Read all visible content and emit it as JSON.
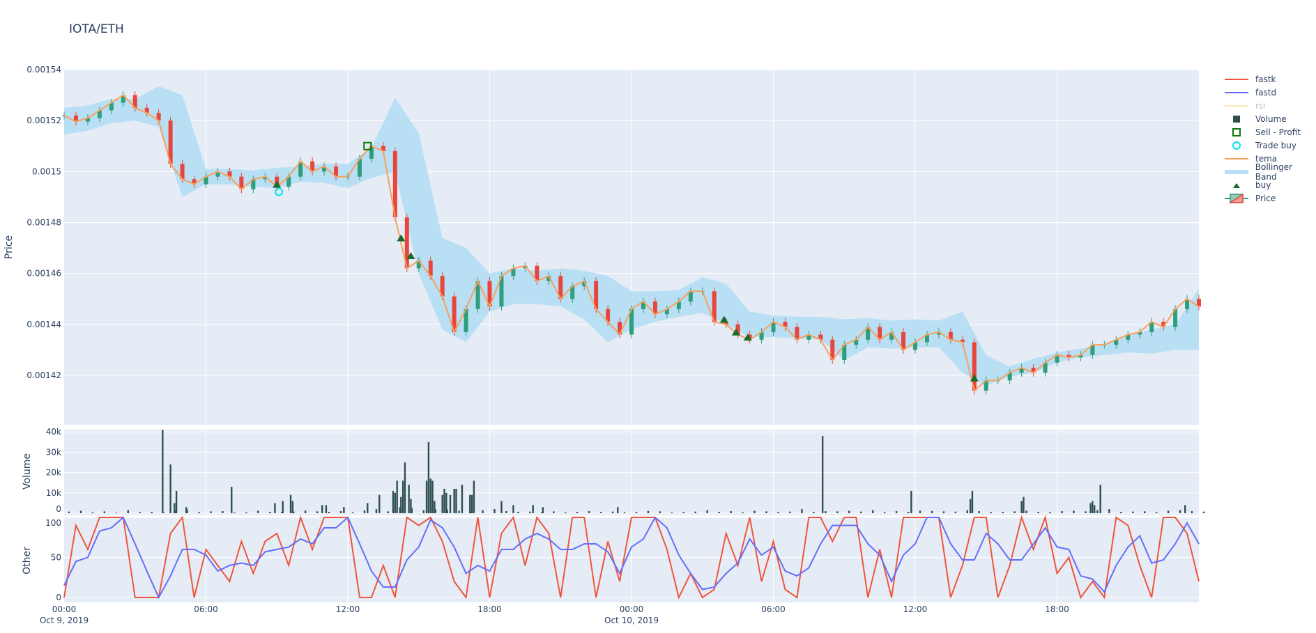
{
  "title": "IOTA/ETH",
  "colors": {
    "increasing": "#2e9e7b",
    "decreasing": "#e8453c",
    "tema": "#f7a05a",
    "band": "#b9dff4",
    "volume": "#2f4f4f",
    "fastk": "#ef553b",
    "fastd": "#636efa",
    "rsi": "#fde7b4",
    "buy": "#1a6b2e",
    "trade_buy": "#00e5ee",
    "sell_profit": "#0a7a0a",
    "plot_bg": "#e5ecf6"
  },
  "legend": [
    {
      "name": "fastk",
      "icon": "line-icon",
      "color": "#ef553b"
    },
    {
      "name": "fastd",
      "icon": "line-icon",
      "color": "#636efa"
    },
    {
      "name": "rsi",
      "icon": "line-icon",
      "color": "#fde7b4",
      "hidden": true
    },
    {
      "name": "Volume",
      "icon": "square-icon",
      "color": "#2f4f4f"
    },
    {
      "name": "Sell - Profit",
      "icon": "open-square-icon",
      "color": "#0a7a0a"
    },
    {
      "name": "Trade buy",
      "icon": "open-circle-icon",
      "color": "#00e5ee"
    },
    {
      "name": "tema",
      "icon": "line-icon",
      "color": "#f7a05a"
    },
    {
      "name": "Bollinger Band",
      "icon": "band-icon",
      "color": "#b9dff4"
    },
    {
      "name": "buy",
      "icon": "triangle-up-icon",
      "color": "#1a6b2e"
    },
    {
      "name": "Price",
      "icon": "candlestick-icon",
      "color": "#2e9e7b"
    }
  ],
  "chart_data": [
    {
      "type": "candlestick",
      "ylabel": "Price",
      "ylim": [
        0.001401,
        0.00154
      ],
      "yticks": [
        "0.00142",
        "0.00144",
        "0.00146",
        "0.00148",
        "0.0015",
        "0.00152",
        "0.00154"
      ],
      "start": "2019-10-09 00:00",
      "interval_minutes": 30,
      "close": [
        0.001522,
        0.0015196,
        0.001521,
        0.001524,
        0.001527,
        0.00153,
        0.001525,
        0.001523,
        0.00152,
        0.001503,
        0.001497,
        0.001495,
        0.001498,
        0.0015,
        0.001498,
        0.001493,
        0.001497,
        0.001498,
        0.001494,
        0.001498,
        0.001504,
        0.0015,
        0.001502,
        0.001498,
        0.001498,
        0.001505,
        0.00151,
        0.001508,
        0.001482,
        0.001462,
        0.001465,
        0.001459,
        0.001451,
        0.001437,
        0.001446,
        0.001457,
        0.001447,
        0.001459,
        0.001462,
        0.001463,
        0.001457,
        0.001459,
        0.00145,
        0.001455,
        0.001457,
        0.001446,
        0.001441,
        0.001436,
        0.001446,
        0.001449,
        0.001444,
        0.001446,
        0.001449,
        0.001453,
        0.001453,
        0.001441,
        0.00144,
        0.001436,
        0.001434,
        0.001437,
        0.001441,
        0.001439,
        0.001434,
        0.001436,
        0.001434,
        0.001426,
        0.001432,
        0.001434,
        0.001439,
        0.001434,
        0.001437,
        0.00143,
        0.001433,
        0.001436,
        0.001437,
        0.001434,
        0.001433,
        0.001414,
        0.001418,
        0.001418,
        0.001421,
        0.001423,
        0.001421,
        0.001425,
        0.001428,
        0.001427,
        0.001428,
        0.001432,
        0.001432,
        0.001434,
        0.001436,
        0.001437,
        0.001441,
        0.001439,
        0.001446,
        0.00145,
        0.001447
      ],
      "bollinger_hourly_upper": [
        1.525,
        1.526,
        1.5285,
        1.5285,
        1.5335,
        1.53,
        1.501,
        1.501,
        1.5005,
        1.5015,
        1.502,
        1.503,
        1.503,
        1.5095,
        1.529,
        1.515,
        1.474,
        1.47,
        1.46,
        1.462,
        1.461,
        1.462,
        1.461,
        1.459,
        1.453,
        1.453,
        1.4535,
        1.4585,
        1.456,
        1.445,
        1.4435,
        1.443,
        1.443,
        1.442,
        1.4425,
        1.4415,
        1.442,
        1.4415,
        1.445,
        1.428,
        1.4235,
        1.4265,
        1.429,
        1.4305,
        1.432,
        1.4355,
        1.438,
        1.44,
        1.454
      ],
      "bollinger_hourly_lower": [
        1.5145,
        1.516,
        1.519,
        1.52,
        1.5175,
        1.49,
        1.495,
        1.495,
        1.494,
        1.4935,
        1.496,
        1.4955,
        1.4935,
        1.4975,
        1.5,
        1.46,
        1.438,
        1.433,
        1.445,
        1.448,
        1.448,
        1.447,
        1.442,
        1.433,
        1.438,
        1.441,
        1.443,
        1.4445,
        1.44,
        1.435,
        1.435,
        1.4345,
        1.434,
        1.426,
        1.431,
        1.4305,
        1.431,
        1.431,
        1.421,
        1.416,
        1.4195,
        1.421,
        1.425,
        1.427,
        1.428,
        1.429,
        1.4285,
        1.43,
        1.43
      ],
      "bollinger_unit": "1e-3",
      "buy": [
        [
          "2019-10-09 09:00",
          0.001495
        ],
        [
          "2019-10-09 14:15",
          0.001474
        ],
        [
          "2019-10-09 14:40",
          0.001467
        ],
        [
          "2019-10-10 03:55",
          0.001442
        ],
        [
          "2019-10-10 04:25",
          0.001437
        ],
        [
          "2019-10-10 04:55",
          0.001435
        ],
        [
          "2019-10-10 14:30",
          0.001419
        ]
      ],
      "trade_buy": [
        [
          "2019-10-09 09:05",
          0.001492
        ]
      ],
      "sell_profit": [
        [
          "2019-10-09 12:50",
          0.00151
        ]
      ]
    },
    {
      "type": "bar",
      "ylabel": "Volume",
      "ylim": [
        0,
        42000
      ],
      "yticks": [
        "0",
        "10k",
        "20k",
        "30k",
        "40k"
      ],
      "bars": [
        [
          "2019-10-09 04:10",
          41000
        ],
        [
          "2019-10-09 04:30",
          24000
        ],
        [
          "2019-10-09 04:40",
          5000
        ],
        [
          "2019-10-09 04:45",
          11000
        ],
        [
          "2019-10-09 05:10",
          3000
        ],
        [
          "2019-10-09 07:05",
          13000
        ],
        [
          "2019-10-09 08:55",
          5000
        ],
        [
          "2019-10-09 09:15",
          6000
        ],
        [
          "2019-10-09 09:35",
          9000
        ],
        [
          "2019-10-09 09:40",
          6000
        ],
        [
          "2019-10-09 10:55",
          4000
        ],
        [
          "2019-10-09 11:05",
          4000
        ],
        [
          "2019-10-09 11:50",
          3000
        ],
        [
          "2019-10-09 12:50",
          5000
        ],
        [
          "2019-10-09 13:20",
          9000
        ],
        [
          "2019-10-09 13:55",
          11000
        ],
        [
          "2019-10-09 14:00",
          10000
        ],
        [
          "2019-10-09 14:05",
          16000
        ],
        [
          "2019-10-09 14:15",
          8000
        ],
        [
          "2019-10-09 14:20",
          16000
        ],
        [
          "2019-10-09 14:25",
          25000
        ],
        [
          "2019-10-09 14:35",
          14000
        ],
        [
          "2019-10-09 14:40",
          7000
        ],
        [
          "2019-10-09 15:20",
          16000
        ],
        [
          "2019-10-09 15:25",
          35000
        ],
        [
          "2019-10-09 15:30",
          17000
        ],
        [
          "2019-10-09 15:35",
          16000
        ],
        [
          "2019-10-09 15:40",
          6000
        ],
        [
          "2019-10-09 16:00",
          9000
        ],
        [
          "2019-10-09 16:05",
          12000
        ],
        [
          "2019-10-09 16:10",
          10000
        ],
        [
          "2019-10-09 16:20",
          9000
        ],
        [
          "2019-10-09 16:30",
          12000
        ],
        [
          "2019-10-09 16:35",
          12000
        ],
        [
          "2019-10-09 16:50",
          14000
        ],
        [
          "2019-10-09 17:10",
          9000
        ],
        [
          "2019-10-09 17:15",
          9000
        ],
        [
          "2019-10-09 17:20",
          16000
        ],
        [
          "2019-10-09 18:30",
          6000
        ],
        [
          "2019-10-09 19:00",
          4000
        ],
        [
          "2019-10-09 19:50",
          4000
        ],
        [
          "2019-10-09 20:15",
          3000
        ],
        [
          "2019-10-09 23:25",
          3000
        ],
        [
          "2019-10-10 08:05",
          38000
        ],
        [
          "2019-10-10 11:50",
          11000
        ],
        [
          "2019-10-10 14:20",
          7000
        ],
        [
          "2019-10-10 14:25",
          11000
        ],
        [
          "2019-10-10 16:30",
          6000
        ],
        [
          "2019-10-10 16:35",
          8000
        ],
        [
          "2019-10-10 19:25",
          5000
        ],
        [
          "2019-10-10 19:35",
          4000
        ],
        [
          "2019-10-10 19:30",
          6000
        ],
        [
          "2019-10-10 19:50",
          14000
        ],
        [
          "2019-10-10 23:25",
          4000
        ]
      ],
      "baseline_every_30min": [
        800,
        1200,
        500,
        900,
        300,
        1500,
        600,
        700,
        400,
        1100,
        1800,
        600,
        900,
        1000,
        400,
        500,
        1200,
        700,
        600,
        800,
        1300,
        900,
        700,
        1000,
        500,
        1400,
        2000,
        900,
        3000,
        2500,
        1500,
        2000,
        1800,
        1200,
        900,
        1500,
        2000,
        1000,
        700,
        800,
        600,
        900,
        500,
        700,
        1000,
        600,
        800,
        500,
        700,
        1100,
        900,
        400,
        600,
        800,
        1500,
        700,
        1000,
        500,
        1200,
        900,
        600,
        800,
        2000,
        700,
        1000,
        900,
        1200,
        800,
        1500,
        600,
        1000,
        700,
        1300,
        1100,
        900,
        800,
        1500,
        1000,
        600,
        700,
        900,
        1300,
        700,
        600,
        1000,
        1200,
        900,
        1500,
        2000,
        700,
        800,
        900,
        600,
        1200,
        1500,
        1000,
        800
      ]
    },
    {
      "type": "line",
      "ylabel": "Other",
      "ylim": [
        -4,
        100
      ],
      "yticks": [
        "0",
        "50",
        "100"
      ],
      "xticks": [
        [
          "00:00",
          "Oct 9, 2019"
        ],
        [
          "06:00",
          ""
        ],
        [
          "12:00",
          ""
        ],
        [
          "18:00",
          ""
        ],
        [
          "00:00",
          "Oct 10, 2019"
        ],
        [
          "06:00",
          ""
        ],
        [
          "12:00",
          ""
        ],
        [
          "18:00",
          ""
        ]
      ],
      "series": [
        {
          "name": "fastk",
          "values": [
            0,
            90,
            60,
            100,
            100,
            100,
            0,
            0,
            0,
            80,
            100,
            0,
            60,
            40,
            20,
            70,
            30,
            70,
            80,
            40,
            100,
            60,
            100,
            100,
            100,
            0,
            0,
            40,
            0,
            100,
            90,
            100,
            70,
            20,
            0,
            100,
            0,
            80,
            100,
            40,
            100,
            80,
            0,
            100,
            100,
            0,
            70,
            20,
            100,
            100,
            100,
            60,
            0,
            30,
            0,
            10,
            80,
            40,
            100,
            20,
            70,
            10,
            0,
            100,
            100,
            70,
            100,
            100,
            0,
            60,
            0,
            100,
            100,
            100,
            100,
            0,
            40,
            100,
            100,
            0,
            40,
            100,
            60,
            100,
            30,
            50,
            0,
            20,
            0,
            100,
            90,
            40,
            0,
            100,
            100,
            80,
            20
          ]
        },
        {
          "name": "fastd",
          "values": [
            15,
            45,
            50,
            83,
            87,
            100,
            67,
            33,
            0,
            27,
            60,
            60,
            53,
            33,
            40,
            43,
            40,
            57,
            60,
            63,
            73,
            67,
            87,
            87,
            100,
            67,
            33,
            13,
            13,
            47,
            63,
            97,
            87,
            63,
            30,
            40,
            33,
            60,
            60,
            73,
            80,
            73,
            60,
            60,
            67,
            67,
            57,
            30,
            63,
            73,
            100,
            87,
            53,
            30,
            10,
            13,
            30,
            43,
            73,
            53,
            63,
            33,
            27,
            37,
            67,
            90,
            90,
            90,
            67,
            53,
            20,
            53,
            67,
            100,
            100,
            67,
            47,
            47,
            80,
            67,
            47,
            47,
            67,
            87,
            63,
            60,
            27,
            23,
            7,
            40,
            63,
            77,
            43,
            47,
            67,
            93,
            67
          ]
        },
        {
          "name": "rsi",
          "values": [],
          "hidden": true
        }
      ]
    }
  ]
}
